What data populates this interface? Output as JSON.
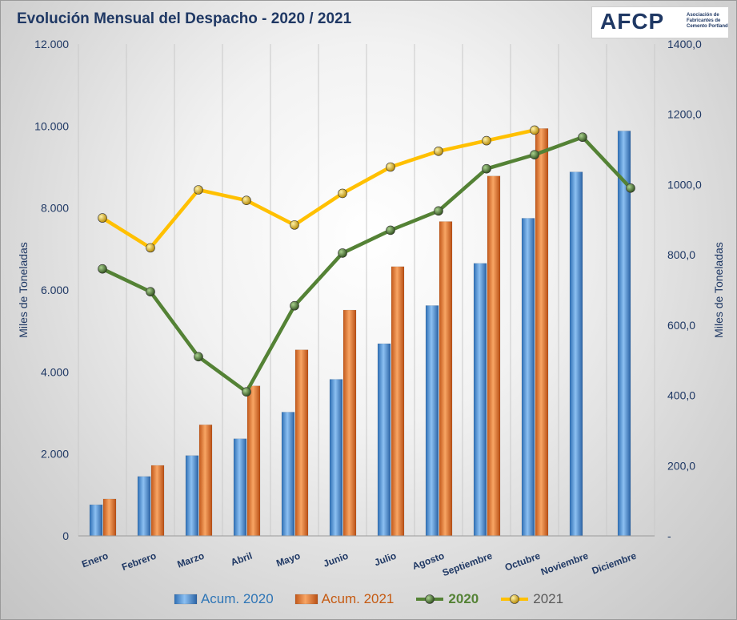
{
  "title": "Evolución Mensual del Despacho - 2020 / 2021",
  "logo": {
    "word": "AFCP",
    "subtitle": "Asociación de Fabricantes de Cemento Portland"
  },
  "chart_data": {
    "type": "bar",
    "categories": [
      "Enero",
      "Febrero",
      "Marzo",
      "Abril",
      "Mayo",
      "Junio",
      "Julio",
      "Agosto",
      "Septiembre",
      "Octubre",
      "Noviembre",
      "Diciembre"
    ],
    "y_left": {
      "label": "Miles de Toneladas",
      "min": 0,
      "max": 12000,
      "tick_labels": [
        "0",
        "2.000",
        "4.000",
        "6.000",
        "8.000",
        "10.000",
        "12.000"
      ]
    },
    "y_right": {
      "label": "Miles de Toneladas",
      "min": 0,
      "max": 1400,
      "tick_labels": [
        "-",
        "200,0",
        "400,0",
        "600,0",
        "800,0",
        "1000,0",
        "1200,0",
        "1400,0"
      ]
    },
    "series": [
      {
        "name": "Acum. 2020",
        "kind": "bar",
        "axis": "left",
        "color": "#4a8fd8",
        "values": [
          760,
          1450,
          1960,
          2370,
          3020,
          3820,
          4690,
          5620,
          6650,
          7750,
          8880,
          9880
        ]
      },
      {
        "name": "Acum. 2021",
        "kind": "bar",
        "axis": "left",
        "color": "#ed7d31",
        "values": [
          900,
          1720,
          2710,
          3660,
          4540,
          5510,
          6570,
          7670,
          8780,
          9940,
          null,
          null
        ]
      },
      {
        "name": "2020",
        "kind": "line",
        "axis": "right",
        "color": "#548235",
        "values": [
          760,
          695,
          510,
          410,
          655,
          805,
          870,
          925,
          1045,
          1085,
          1135,
          990
        ]
      },
      {
        "name": "2021",
        "kind": "line",
        "axis": "right",
        "color": "#ffc000",
        "values": [
          905,
          820,
          985,
          955,
          885,
          975,
          1050,
          1095,
          1125,
          1155,
          null,
          null
        ]
      }
    ],
    "grid": "vertical",
    "legend": "bottom"
  }
}
